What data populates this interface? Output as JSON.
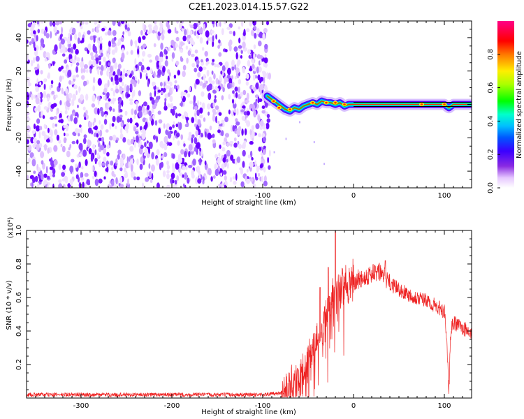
{
  "title": "C2E1.2023.014.15.57.G22",
  "chart_data": [
    {
      "type": "heatmap",
      "xlabel": "Height of straight line (km)",
      "ylabel": "Frequency (Hz)",
      "xlim": [
        -360,
        130
      ],
      "ylim": [
        -50,
        50
      ],
      "xticks": [
        -300,
        -200,
        -100,
        0,
        100
      ],
      "xtick_labels": [
        "-300",
        "-200",
        "-100",
        "0",
        "100"
      ],
      "yticks": [
        -40,
        -20,
        0,
        20,
        40
      ],
      "ytick_labels": [
        "-40",
        "-20",
        "0",
        "20",
        "40"
      ],
      "colorbar": {
        "label": "Normalized spectral amplitude",
        "range": [
          0,
          1
        ],
        "ticks": [
          0.0,
          0.2,
          0.4,
          0.6,
          0.8
        ],
        "tick_labels": [
          "0.0",
          "0.2",
          "0.4",
          "0.6",
          "0.8"
        ],
        "colormap": "rainbow (white-purple-blue-cyan-green-yellow-red-magenta)"
      },
      "signal_track": {
        "x": [
          -95,
          -90,
          -85,
          -80,
          -75,
          -70,
          -65,
          -60,
          -55,
          -50,
          -45,
          -40,
          -35,
          -30,
          -25,
          -20,
          -15,
          -10,
          -5,
          0,
          20,
          40,
          60,
          80,
          100,
          105,
          110,
          120,
          130
        ],
        "y": [
          5,
          3,
          1,
          -1,
          -3,
          -4,
          -2,
          -3,
          -1,
          0,
          1,
          0,
          2,
          1,
          1,
          0,
          1,
          -1,
          0,
          0,
          0,
          0,
          0,
          0,
          0,
          -2,
          0,
          0,
          0
        ]
      },
      "noise_region_x": [
        -360,
        -95
      ]
    },
    {
      "type": "line",
      "xlabel": "Height of straight line (km)",
      "ylabel": "SNR (10 * v/v)",
      "y_multiplier_label": "(x10⁴)",
      "xlim": [
        -360,
        130
      ],
      "ylim": [
        0,
        1.0
      ],
      "xticks": [
        -300,
        -200,
        -100,
        0,
        100
      ],
      "xtick_labels": [
        "-300",
        "-200",
        "-100",
        "0",
        "100"
      ],
      "yticks": [
        0.2,
        0.4,
        0.6,
        0.8,
        1.0
      ],
      "ytick_labels": [
        "0.2",
        "0.4",
        "0.6",
        "0.8",
        "1.0"
      ],
      "color": "#ee2222",
      "series": [
        {
          "x": [
            -360,
            -300,
            -250,
            -200,
            -150,
            -100,
            -90,
            -80,
            -70,
            -60,
            -50,
            -40,
            -30,
            -20,
            -10,
            0,
            10,
            20,
            30,
            40,
            50,
            60,
            70,
            80,
            90,
            100,
            103,
            105,
            107,
            110,
            120,
            130
          ],
          "y": [
            0.02,
            0.02,
            0.02,
            0.02,
            0.02,
            0.02,
            0.025,
            0.03,
            0.05,
            0.1,
            0.2,
            0.35,
            0.5,
            0.6,
            0.65,
            0.7,
            0.72,
            0.74,
            0.75,
            0.68,
            0.65,
            0.62,
            0.6,
            0.58,
            0.55,
            0.52,
            0.3,
            0.03,
            0.4,
            0.45,
            0.42,
            0.38
          ],
          "peaks": [
            {
              "x": -20,
              "y": 1.0
            },
            {
              "x": -28,
              "y": 0.78
            },
            {
              "x": -37,
              "y": 0.66
            },
            {
              "x": 35,
              "y": 0.82
            }
          ]
        }
      ]
    }
  ]
}
